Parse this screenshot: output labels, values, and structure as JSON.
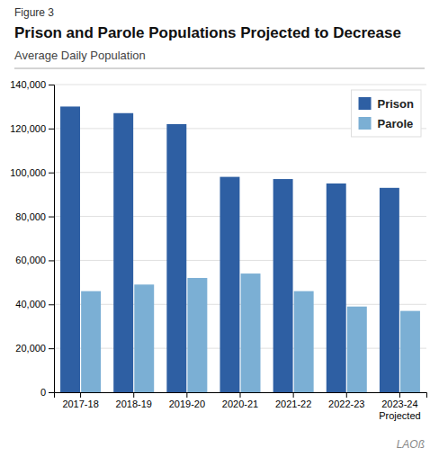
{
  "chart_data": {
    "type": "bar",
    "title": "Prison and Parole Populations Projected to Decrease",
    "subtitle": "Average Daily Population",
    "annotations": [
      "Figure 3",
      "LAOß"
    ],
    "categories": [
      "2017-18",
      "2018-19",
      "2019-20",
      "2020-21",
      "2021-22",
      "2022-23",
      "2023-24\nProjected"
    ],
    "series": [
      {
        "name": "Prison",
        "color": "#2E5FA3",
        "values": [
          130000,
          127000,
          122000,
          98000,
          97000,
          95000,
          93000
        ]
      },
      {
        "name": "Parole",
        "color": "#7BAFD4",
        "values": [
          46000,
          49000,
          52000,
          54000,
          46000,
          39000,
          37000
        ]
      }
    ],
    "ylim": [
      0,
      140000
    ],
    "yticks": [
      0,
      {
        "value": 20000,
        "label": "20,000"
      },
      {
        "value": 40000,
        "label": "40,000"
      },
      {
        "value": 60000,
        "label": "60,000"
      },
      {
        "value": 80000,
        "label": "80,000"
      },
      {
        "value": 100000,
        "label": "100,000"
      },
      {
        "value": 120000,
        "label": "120,000"
      },
      {
        "value": 140000,
        "label": "140,000"
      }
    ],
    "grid": true,
    "legend": "upper right"
  }
}
